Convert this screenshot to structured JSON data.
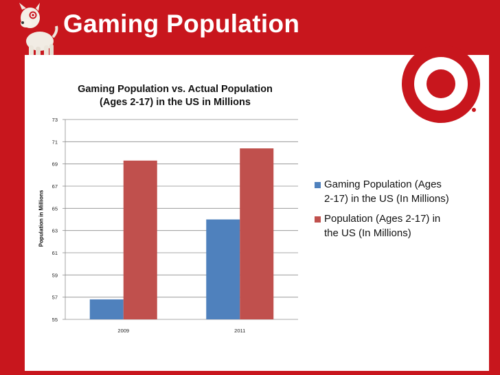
{
  "slide": {
    "title": "Gaming Population"
  },
  "colors": {
    "background": "#c8161d",
    "panel": "#ffffff",
    "series_blue": "#4f81bd",
    "series_red": "#c0504d"
  },
  "icons": {
    "mascot": "dog-mascot-icon",
    "logo": "target-bullseye-logo-icon"
  },
  "chart_data": {
    "type": "bar",
    "title_lines": [
      "Gaming Population vs. Actual Population",
      "(Ages 2-17) in the US in Millions"
    ],
    "xlabel": "",
    "ylabel": "Population in Millions",
    "categories": [
      "2009",
      "2011"
    ],
    "series": [
      {
        "name": "Gaming Population (Ages 2-17) in the US (In Millions)",
        "values": [
          56.8,
          64.0
        ],
        "color": "#4f81bd"
      },
      {
        "name": "Population (Ages 2-17) in the US (In Millions)",
        "values": [
          69.3,
          70.4
        ],
        "color": "#c0504d"
      }
    ],
    "ylim": [
      55,
      73
    ],
    "yticks": [
      "55",
      "57",
      "59",
      "61",
      "63",
      "65",
      "67",
      "69",
      "71",
      "73"
    ],
    "grid": true,
    "legend_position": "right"
  }
}
